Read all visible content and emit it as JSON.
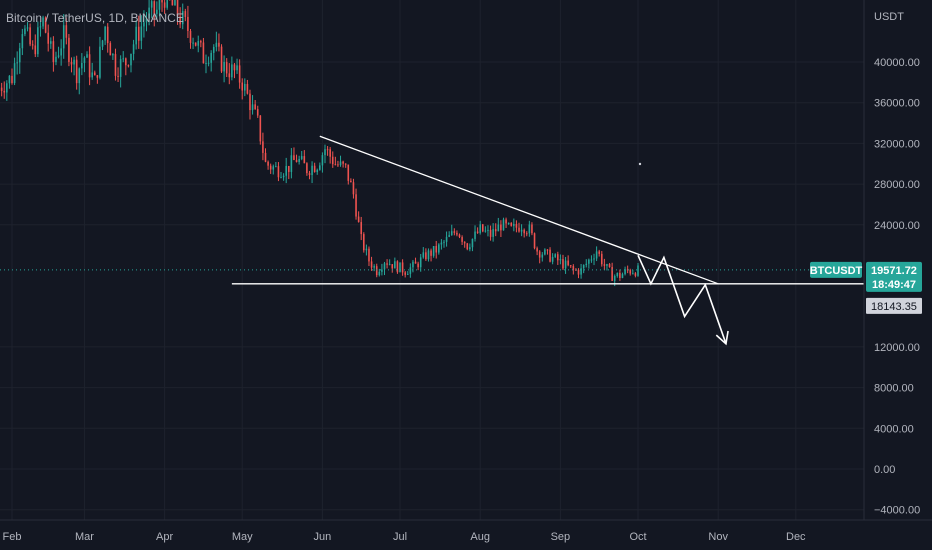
{
  "chart_data": {
    "type": "candlestick",
    "title": "Bitcoin / TetherUS, 1D, BINANCE",
    "currency": "USDT",
    "y_ticks": [
      40000,
      36000,
      32000,
      28000,
      24000,
      12000,
      8000,
      4000,
      0,
      -4000
    ],
    "y_tick_labels": [
      "40000.00",
      "36000.00",
      "32000.00",
      "28000.00",
      "24000.00",
      "12000.00",
      "8000.00",
      "4000.00",
      "0.00",
      "−4000.00"
    ],
    "ylim": [
      -5000,
      47500
    ],
    "x_tick_labels": [
      "Feb",
      "Mar",
      "Apr",
      "May",
      "Jun",
      "Jul",
      "Aug",
      "Sep",
      "Oct",
      "Nov",
      "Dec"
    ],
    "x_tick_days": [
      0,
      28,
      59,
      89,
      120,
      150,
      181,
      212,
      242,
      273,
      303
    ],
    "x_range_days": [
      -5,
      330
    ],
    "price_path": [
      [
        -5,
        37500
      ],
      [
        0,
        38500
      ],
      [
        4,
        43500
      ],
      [
        8,
        41000
      ],
      [
        12,
        44000
      ],
      [
        16,
        40000
      ],
      [
        20,
        42500
      ],
      [
        25,
        39000
      ],
      [
        28,
        40500
      ],
      [
        32,
        38000
      ],
      [
        36,
        43500
      ],
      [
        40,
        39500
      ],
      [
        44,
        40000
      ],
      [
        48,
        42500
      ],
      [
        52,
        44500
      ],
      [
        56,
        45000
      ],
      [
        59,
        46500
      ],
      [
        62,
        45500
      ],
      [
        66,
        44000
      ],
      [
        70,
        42500
      ],
      [
        74,
        40500
      ],
      [
        78,
        41500
      ],
      [
        82,
        39500
      ],
      [
        86,
        39000
      ],
      [
        89,
        38000
      ],
      [
        92,
        36000
      ],
      [
        95,
        34000
      ],
      [
        98,
        30000
      ],
      [
        102,
        29500
      ],
      [
        106,
        29500
      ],
      [
        110,
        30500
      ],
      [
        114,
        29500
      ],
      [
        118,
        30000
      ],
      [
        121,
        31500
      ],
      [
        125,
        30000
      ],
      [
        129,
        29500
      ],
      [
        132,
        27000
      ],
      [
        135,
        22500
      ],
      [
        138,
        20500
      ],
      [
        141,
        19500
      ],
      [
        144,
        20500
      ],
      [
        148,
        20000
      ],
      [
        152,
        19500
      ],
      [
        156,
        20000
      ],
      [
        160,
        21000
      ],
      [
        164,
        21500
      ],
      [
        168,
        22500
      ],
      [
        172,
        23500
      ],
      [
        176,
        22000
      ],
      [
        181,
        23500
      ],
      [
        185,
        23000
      ],
      [
        189,
        24000
      ],
      [
        193,
        23500
      ],
      [
        197,
        24000
      ],
      [
        200,
        23500
      ],
      [
        203,
        21500
      ],
      [
        207,
        21000
      ],
      [
        211,
        20500
      ],
      [
        214,
        20000
      ],
      [
        217,
        19500
      ],
      [
        220,
        19500
      ],
      [
        223,
        20500
      ],
      [
        226,
        21500
      ],
      [
        229,
        20000
      ],
      [
        232,
        19000
      ],
      [
        235,
        19000
      ],
      [
        238,
        19500
      ],
      [
        242,
        19500
      ]
    ],
    "current_price": 19571.72,
    "current_price_label": "19571.72",
    "countdown": "18:49:47",
    "symbol_tag": "BTCUSDT",
    "marker_price_label": "18143.35",
    "annotations": {
      "descending_trendline": {
        "from": [
          119,
          32700
        ],
        "to": [
          273,
          18200
        ]
      },
      "support_line": {
        "from": [
          85,
          18200
        ],
        "to": [
          330,
          18200
        ],
        "price": 18200
      },
      "forecast_path": [
        [
          242,
          21000
        ],
        [
          247,
          18200
        ],
        [
          252,
          20800
        ],
        [
          260,
          15000
        ],
        [
          268,
          18100
        ],
        [
          276,
          12300
        ]
      ]
    },
    "colors": {
      "background": "#131722",
      "up": "#26a69a",
      "down": "#ef5350",
      "grid": "#1e222d",
      "text": "#b2b5be",
      "annotation": "#ffffff",
      "price_line": "#26a69a"
    }
  }
}
